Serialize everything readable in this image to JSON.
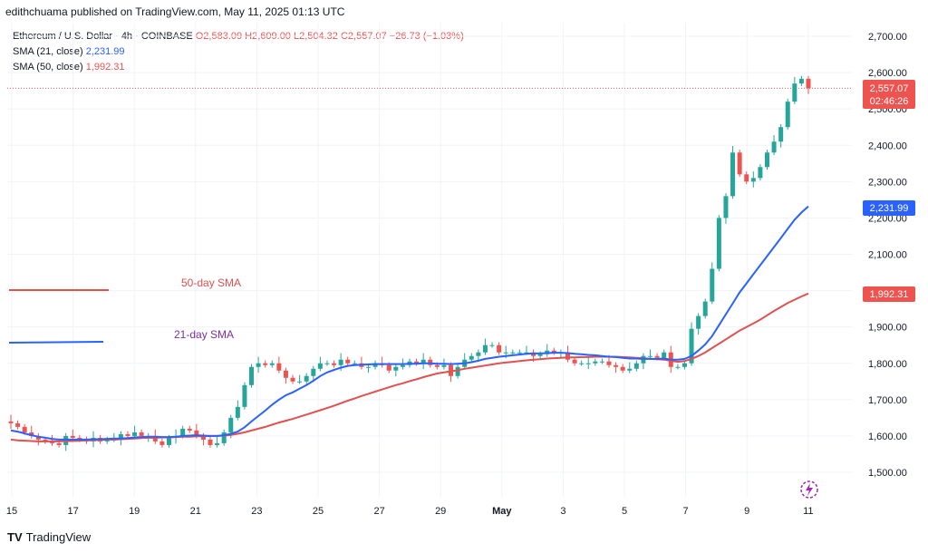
{
  "header": {
    "publisher": "edithchuama published on TradingView.com, May 11, 2025 01:13 UTC"
  },
  "legend": {
    "symbol": "Ethereum / U.S. Dollar · 4h · COINBASE",
    "ohlc": "O2,583.09 H2,609.00 L2,504.32 C2,557.07 −26.73 (−1.03%)",
    "sma21_label": "SMA (21, close)",
    "sma21_value": "2,231.99",
    "sma50_label": "SMA (50, close)",
    "sma50_value": "1,992.31"
  },
  "annotations": {
    "sma50": "50-day SMA",
    "sma21": "21-day SMA"
  },
  "badges": {
    "price": "2,557.07",
    "countdown": "02:46:26",
    "sma21": "2,231.99",
    "sma50": "1,992.31"
  },
  "footer": {
    "brand": "TradingView",
    "logo": "TV"
  },
  "colors": {
    "up": "#26a69a",
    "down": "#ef5350",
    "sma21": "#2962ff",
    "sma50": "#e0514f",
    "grid": "#f0f3fa",
    "text": "#131722"
  },
  "chart_data": {
    "type": "candlestick",
    "symbol": "Ethereum / U.S. Dollar",
    "interval": "4h",
    "exchange": "COINBASE",
    "ylim": [
      1450,
      2760
    ],
    "y_ticks": [
      "1,500.00",
      "1,600.00",
      "1,700.00",
      "1,800.00",
      "1,900.00",
      "2,000.00",
      "2,100.00",
      "2,200.00",
      "2,300.00",
      "2,400.00",
      "2,500.00",
      "2,600.00",
      "2,700.00"
    ],
    "x_ticks": [
      "15",
      "17",
      "19",
      "21",
      "23",
      "25",
      "27",
      "29",
      "May",
      "3",
      "5",
      "7",
      "9",
      "11"
    ],
    "candle_close": [
      1635,
      1625,
      1610,
      1600,
      1590,
      1585,
      1580,
      1575,
      1600,
      1595,
      1590,
      1585,
      1595,
      1585,
      1590,
      1590,
      1605,
      1600,
      1610,
      1600,
      1600,
      1585,
      1575,
      1595,
      1600,
      1620,
      1615,
      1600,
      1590,
      1575,
      1580,
      1610,
      1650,
      1680,
      1740,
      1790,
      1800,
      1795,
      1800,
      1780,
      1760,
      1750,
      1750,
      1765,
      1785,
      1800,
      1800,
      1795,
      1810,
      1800,
      1800,
      1790,
      1790,
      1800,
      1795,
      1780,
      1790,
      1795,
      1805,
      1800,
      1810,
      1795,
      1790,
      1795,
      1765,
      1790,
      1810,
      1820,
      1830,
      1850,
      1850,
      1830,
      1830,
      1830,
      1830,
      1830,
      1820,
      1825,
      1835,
      1830,
      1830,
      1810,
      1800,
      1800,
      1800,
      1805,
      1805,
      1795,
      1790,
      1780,
      1785,
      1800,
      1820,
      1820,
      1815,
      1830,
      1790,
      1790,
      1800,
      1895,
      1930,
      1970,
      2060,
      2200,
      2260,
      2380,
      2320,
      2300,
      2310,
      2340,
      2380,
      2410,
      2450,
      2520,
      2570,
      2583,
      2557
    ],
    "series": [
      {
        "name": "SMA (21, close)",
        "last": 2231.99,
        "values": [
          1615,
          1612,
          1607,
          1602,
          1598,
          1595,
          1592,
          1590,
          1590,
          1590,
          1590,
          1590,
          1591,
          1591,
          1592,
          1593,
          1593,
          1594,
          1596,
          1597,
          1598,
          1598,
          1597,
          1597,
          1598,
          1600,
          1601,
          1602,
          1601,
          1600,
          1600,
          1602,
          1606,
          1612,
          1624,
          1640,
          1655,
          1670,
          1686,
          1700,
          1712,
          1720,
          1730,
          1740,
          1752,
          1765,
          1775,
          1782,
          1788,
          1793,
          1795,
          1796,
          1797,
          1798,
          1798,
          1798,
          1798,
          1798,
          1799,
          1799,
          1800,
          1800,
          1799,
          1799,
          1798,
          1799,
          1800,
          1803,
          1807,
          1812,
          1815,
          1818,
          1820,
          1822,
          1824,
          1826,
          1827,
          1827,
          1828,
          1829,
          1829,
          1828,
          1826,
          1825,
          1823,
          1822,
          1820,
          1818,
          1817,
          1815,
          1813,
          1813,
          1812,
          1812,
          1812,
          1813,
          1810,
          1810,
          1812,
          1820,
          1835,
          1852,
          1875,
          1905,
          1935,
          1965,
          1995,
          2020,
          2045,
          2070,
          2095,
          2120,
          2145,
          2170,
          2195,
          2215,
          2232
        ]
      },
      {
        "name": "SMA (50, close)",
        "last": 1992.31,
        "values": [
          1590,
          1588,
          1587,
          1586,
          1585,
          1585,
          1585,
          1585,
          1586,
          1586,
          1587,
          1588,
          1588,
          1589,
          1590,
          1590,
          1591,
          1592,
          1593,
          1594,
          1595,
          1595,
          1596,
          1596,
          1597,
          1598,
          1598,
          1599,
          1599,
          1600,
          1600,
          1601,
          1603,
          1606,
          1610,
          1615,
          1620,
          1625,
          1631,
          1637,
          1642,
          1647,
          1653,
          1659,
          1665,
          1671,
          1677,
          1683,
          1690,
          1697,
          1703,
          1710,
          1716,
          1722,
          1728,
          1734,
          1740,
          1745,
          1751,
          1756,
          1762,
          1767,
          1772,
          1775,
          1778,
          1781,
          1785,
          1788,
          1791,
          1794,
          1797,
          1800,
          1802,
          1804,
          1806,
          1808,
          1810,
          1811,
          1813,
          1814,
          1815,
          1816,
          1816,
          1817,
          1817,
          1818,
          1818,
          1818,
          1818,
          1817,
          1816,
          1815,
          1814,
          1812,
          1811,
          1810,
          1807,
          1804,
          1806,
          1812,
          1820,
          1830,
          1842,
          1854,
          1866,
          1878,
          1890,
          1900,
          1910,
          1920,
          1932,
          1944,
          1955,
          1966,
          1975,
          1984,
          1992
        ]
      }
    ]
  }
}
